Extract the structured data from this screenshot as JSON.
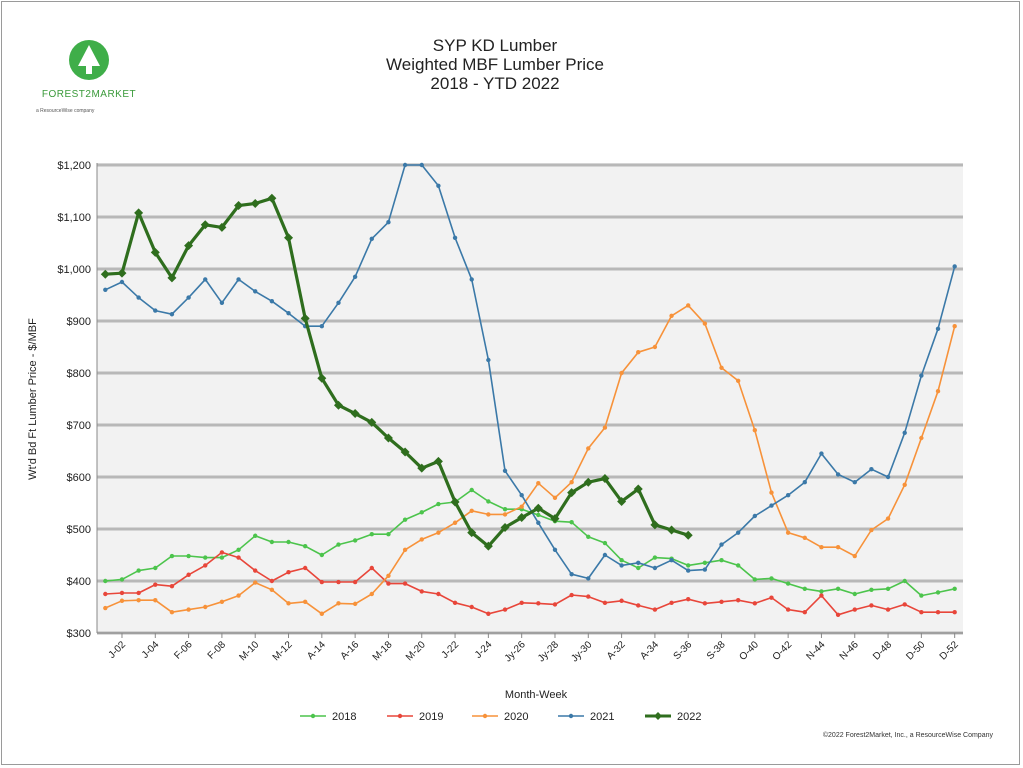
{
  "logo": {
    "name": "FOREST2MARKET",
    "sub": "a ResourceWise company",
    "icon": "tree-icon"
  },
  "colors": {
    "2018": "#4cc44c",
    "2019": "#e8463a",
    "2020": "#f7923a",
    "2021": "#3b79a8",
    "2022": "#2f6e1e",
    "band": "#d9d9d9"
  },
  "copyright": "©2022 Forest2Market, Inc., a ResourceWise Company",
  "chart_data": {
    "type": "line",
    "title_lines": [
      "SYP KD Lumber",
      "Weighted MBF Lumber Price",
      "2018 - YTD 2022"
    ],
    "xlabel": "Month-Week",
    "ylabel": "Wt'd Bd Ft Lumber Price - $/MBF",
    "ylim": [
      300,
      1200
    ],
    "yticks": [
      "$300",
      "$400",
      "$500",
      "$600",
      "$700",
      "$800",
      "$900",
      "$1,000",
      "$1,100",
      "$1,200"
    ],
    "yticks_values": [
      300,
      400,
      500,
      600,
      700,
      800,
      900,
      1000,
      1100,
      1200
    ],
    "x_tick_labels": [
      "J-02",
      "J-04",
      "F-06",
      "F-08",
      "M-10",
      "M-12",
      "A-14",
      "A-16",
      "M-18",
      "M-20",
      "J-22",
      "J-24",
      "Jy-26",
      "Jy-28",
      "Jy-30",
      "A-32",
      "A-34",
      "S-36",
      "S-38",
      "O-40",
      "O-42",
      "N-44",
      "N-46",
      "D-48",
      "D-50",
      "D-52"
    ],
    "x_tick_weeks": [
      2,
      4,
      6,
      8,
      10,
      12,
      14,
      16,
      18,
      20,
      22,
      24,
      26,
      28,
      30,
      32,
      34,
      36,
      38,
      40,
      42,
      44,
      46,
      48,
      50,
      52
    ],
    "legend_position": "bottom",
    "grid": true,
    "weeks": [
      1,
      2,
      3,
      4,
      5,
      6,
      7,
      8,
      9,
      10,
      11,
      12,
      13,
      14,
      15,
      16,
      17,
      18,
      19,
      20,
      21,
      22,
      23,
      24,
      25,
      26,
      27,
      28,
      29,
      30,
      31,
      32,
      33,
      34,
      35,
      36,
      37,
      38,
      39,
      40,
      41,
      42,
      43,
      44,
      45,
      46,
      47,
      48,
      49,
      50,
      51,
      52
    ],
    "series": [
      {
        "name": "2018",
        "values": [
          400,
          403,
          420,
          425,
          448,
          448,
          445,
          445,
          460,
          487,
          475,
          475,
          467,
          450,
          470,
          478,
          490,
          490,
          518,
          532,
          548,
          552,
          575,
          553,
          538,
          538,
          527,
          515,
          513,
          485,
          473,
          440,
          425,
          445,
          443,
          430,
          435,
          440,
          430,
          403,
          405,
          395,
          385,
          380,
          385,
          375,
          383,
          385,
          400,
          372,
          378,
          385
        ]
      },
      {
        "name": "2019",
        "values": [
          375,
          377,
          377,
          393,
          390,
          412,
          430,
          455,
          445,
          420,
          400,
          417,
          425,
          398,
          398,
          398,
          425,
          395,
          395,
          380,
          375,
          358,
          350,
          337,
          345,
          358,
          357,
          355,
          373,
          370,
          358,
          362,
          353,
          345,
          358,
          365,
          357,
          360,
          363,
          357,
          368,
          345,
          340,
          372,
          335,
          345,
          353,
          345,
          355,
          340,
          340,
          340
        ]
      },
      {
        "name": "2020",
        "values": [
          348,
          362,
          363,
          363,
          340,
          345,
          350,
          360,
          372,
          397,
          383,
          357,
          360,
          337,
          357,
          356,
          375,
          410,
          460,
          480,
          493,
          512,
          535,
          528,
          528,
          543,
          588,
          560,
          590,
          655,
          695,
          800,
          840,
          850,
          910,
          930,
          895,
          810,
          785,
          690,
          570,
          493,
          483,
          465,
          465,
          448,
          498,
          520,
          585,
          675,
          765,
          890
        ]
      },
      {
        "name": "2021",
        "values": [
          960,
          975,
          945,
          920,
          913,
          945,
          980,
          935,
          980,
          957,
          938,
          915,
          890,
          890,
          935,
          985,
          1058,
          1090,
          1200,
          1200,
          1160,
          1060,
          980,
          825,
          612,
          565,
          512,
          460,
          413,
          405,
          450,
          430,
          435,
          425,
          440,
          420,
          422,
          470,
          493,
          525,
          545,
          565,
          590,
          645,
          605,
          590,
          615,
          600,
          685,
          795,
          885,
          1005
        ]
      },
      {
        "name": "2022",
        "values": [
          990,
          992,
          1108,
          1032,
          983,
          1045,
          1085,
          1080,
          1122,
          1126,
          1136,
          1060,
          905,
          790,
          738,
          722,
          705,
          675,
          648,
          617,
          630,
          552,
          493,
          467,
          503,
          522,
          540,
          520,
          570,
          590,
          597,
          553,
          577,
          508,
          498,
          488
        ]
      }
    ]
  }
}
